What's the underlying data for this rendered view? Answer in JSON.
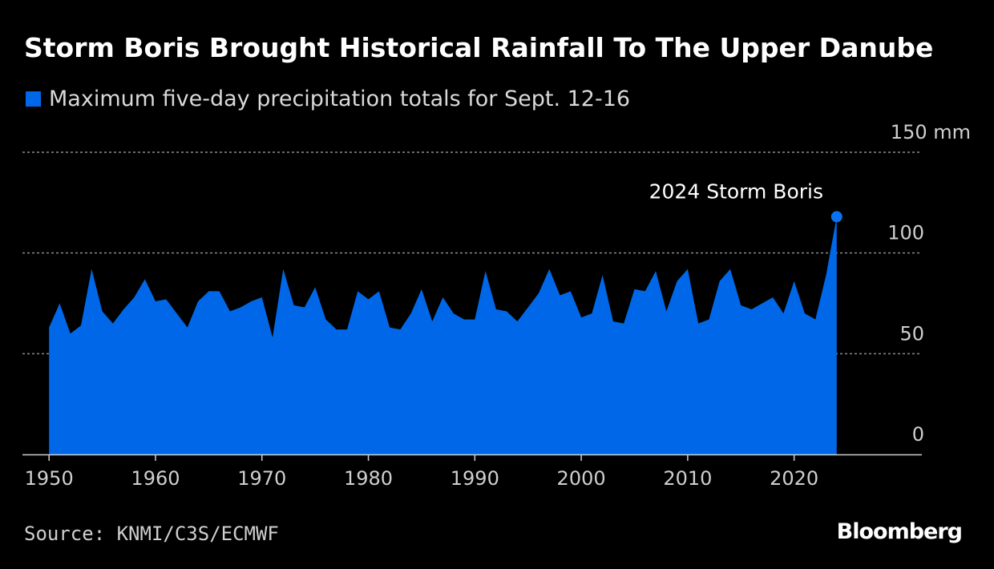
{
  "colors": {
    "background": "#000000",
    "series": "#0068e8",
    "marker": "#0a72f0",
    "grid": "#8a8a8a",
    "axis": "#cfcfcf"
  },
  "source": "Source: KNMI/C3S/ECMWF",
  "logo": "Bloomberg",
  "chart_data": {
    "type": "area",
    "title": "Storm Boris Brought Historical Rainfall To The Upper Danube",
    "legend": [
      "Maximum five-day precipitation totals for Sept. 12-16"
    ],
    "legend_position": "top-left",
    "xlabel": "",
    "ylabel": "",
    "xlim": [
      1947.5,
      2032
    ],
    "ylim": [
      0,
      150
    ],
    "y_unit": "mm",
    "y_ticks": [
      0,
      50,
      100,
      150
    ],
    "y_tick_labels": [
      "0",
      "50",
      "100",
      "150 mm"
    ],
    "x_ticks": [
      1950,
      1960,
      1970,
      1980,
      1990,
      2000,
      2010,
      2020
    ],
    "x_tick_labels": [
      "1950",
      "1960",
      "1970",
      "1980",
      "1990",
      "2000",
      "2010",
      "2020"
    ],
    "grid": true,
    "x": [
      1950,
      1951,
      1952,
      1953,
      1954,
      1955,
      1956,
      1957,
      1958,
      1959,
      1960,
      1961,
      1962,
      1963,
      1964,
      1965,
      1966,
      1967,
      1968,
      1969,
      1970,
      1971,
      1972,
      1973,
      1974,
      1975,
      1976,
      1977,
      1978,
      1979,
      1980,
      1981,
      1982,
      1983,
      1984,
      1985,
      1986,
      1987,
      1988,
      1989,
      1990,
      1991,
      1992,
      1993,
      1994,
      1995,
      1996,
      1997,
      1998,
      1999,
      2000,
      2001,
      2002,
      2003,
      2004,
      2005,
      2006,
      2007,
      2008,
      2009,
      2010,
      2011,
      2012,
      2013,
      2014,
      2015,
      2016,
      2017,
      2018,
      2019,
      2020,
      2021,
      2022,
      2023,
      2024
    ],
    "series": [
      {
        "name": "Maximum five-day precipitation totals for Sept. 12-16",
        "values": [
          63,
          75,
          60,
          64,
          92,
          71,
          65,
          72,
          78,
          87,
          76,
          77,
          70,
          63,
          76,
          81,
          81,
          71,
          73,
          76,
          78,
          58,
          92,
          74,
          73,
          83,
          67,
          62,
          62,
          81,
          77,
          81,
          63,
          62,
          70,
          82,
          66,
          78,
          70,
          67,
          67,
          91,
          72,
          71,
          66,
          73,
          80,
          92,
          79,
          81,
          68,
          70,
          89,
          66,
          65,
          82,
          81,
          91,
          71,
          86,
          92,
          65,
          67,
          86,
          92,
          74,
          72,
          75,
          78,
          70,
          86,
          70,
          67,
          89,
          118
        ]
      }
    ],
    "annotations": [
      {
        "label": "2024 Storm Boris",
        "x": 2024,
        "y": 118
      }
    ]
  }
}
